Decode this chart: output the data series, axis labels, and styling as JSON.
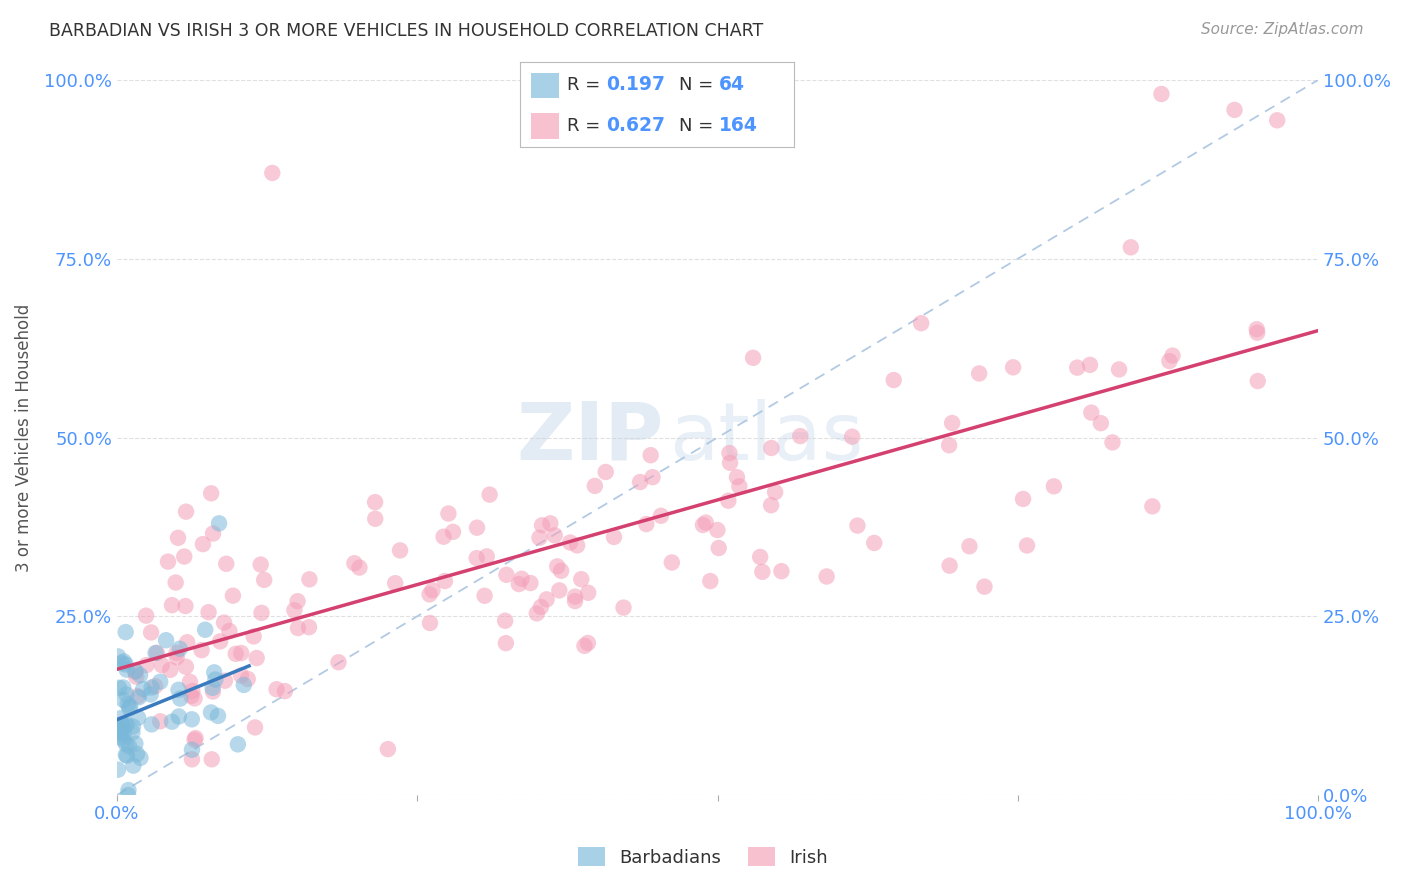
{
  "title": "BARBADIAN VS IRISH 3 OR MORE VEHICLES IN HOUSEHOLD CORRELATION CHART",
  "source": "Source: ZipAtlas.com",
  "ylabel": "3 or more Vehicles in Household",
  "xlim": [
    0,
    1.0
  ],
  "ylim": [
    0,
    1.0
  ],
  "xticklabels": [
    "0.0%",
    "",
    "",
    "",
    "100.0%"
  ],
  "yticklabels_left": [
    "",
    "25.0%",
    "50.0%",
    "75.0%",
    "100.0%"
  ],
  "yticklabels_right": [
    "0.0%",
    "25.0%",
    "50.0%",
    "75.0%",
    "100.0%"
  ],
  "barbadian_color": "#7ab8d9",
  "irish_color": "#f4a0b8",
  "barbadian_line_color": "#3a7abf",
  "irish_line_color": "#d44070",
  "diagonal_color": "#aac4e0",
  "legend_R_barbadian": "0.197",
  "legend_N_barbadian": "64",
  "legend_R_irish": "0.627",
  "legend_N_irish": "164",
  "watermark_zip": "ZIP",
  "watermark_atlas": "atlas",
  "background_color": "#ffffff",
  "grid_color": "#cccccc",
  "title_color": "#333333",
  "label_color": "#555555",
  "tick_color": "#4d94ff",
  "value_color": "#4d94ff",
  "label_text_color": "#666666"
}
